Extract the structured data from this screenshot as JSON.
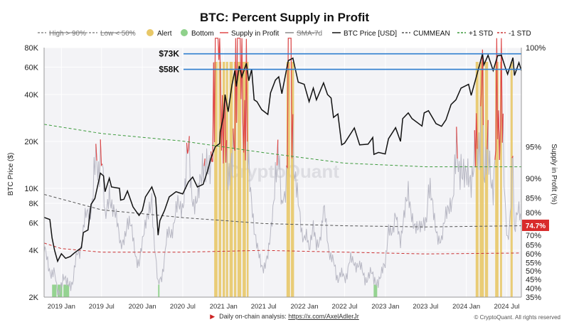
{
  "chart_data": {
    "type": "line",
    "title": "BTC: Percent Supply in Profit",
    "ylabel_left": "BTC Price ($)",
    "ylabel_right": "Supply in Profit (%)",
    "x_tick_labels": [
      "2019 Jan",
      "2019 Jul",
      "2020 Jan",
      "2020 Jul",
      "2021 Jan",
      "2021 Jul",
      "2022 Jan",
      "2022 Jul",
      "2023 Jan",
      "2023 Jul",
      "2024 Jan",
      "2024 Jul"
    ],
    "x_ticks": [
      "2019-01-01",
      "2019-07-01",
      "2020-01-01",
      "2020-07-01",
      "2021-01-01",
      "2021-07-01",
      "2022-01-01",
      "2022-07-01",
      "2023-01-01",
      "2023-07-01",
      "2024-01-01",
      "2024-07-01"
    ],
    "xlim": [
      "2018-10-15",
      "2024-09-05"
    ],
    "left_axis": {
      "scale": "log",
      "ylim": [
        2000,
        80000
      ],
      "tick_labels": [
        "2K",
        "4K",
        "6K",
        "8K",
        "10K",
        "20K",
        "40K",
        "60K",
        "80K"
      ],
      "ticks": [
        2000,
        4000,
        6000,
        8000,
        10000,
        20000,
        40000,
        60000,
        80000
      ]
    },
    "right_axis": {
      "scale": "logit",
      "ylim": [
        35,
        100
      ],
      "tick_labels": [
        "35%",
        "40%",
        "45%",
        "50%",
        "55%",
        "60%",
        "65%",
        "70%",
        "75%",
        "80%",
        "85%",
        "90%",
        "95%",
        "100%"
      ],
      "ticks": [
        35,
        40,
        45,
        50,
        55,
        60,
        65,
        70,
        75,
        80,
        85,
        90,
        95,
        100
      ]
    },
    "legend": {
      "placement": "top",
      "items": [
        {
          "label": "High > 90%",
          "style": "dashed-struck",
          "color": "#8a8a8a"
        },
        {
          "label": "Low < 50%",
          "style": "dashed-struck",
          "color": "#8a8a8a"
        },
        {
          "label": "Alert",
          "style": "dot",
          "color": "#e8c868"
        },
        {
          "label": "Bottom",
          "style": "dot",
          "color": "#8fd18b"
        },
        {
          "label": "Supply in Profit",
          "style": "line",
          "color": "#e04848"
        },
        {
          "label": "SMA-7d",
          "style": "line-struck",
          "color": "#8a8a8a"
        },
        {
          "label": "BTC Price [USD]",
          "style": "line",
          "color": "#111111"
        },
        {
          "label": "CUMMEAN",
          "style": "dashed",
          "color": "#555555"
        },
        {
          "label": "+1 STD",
          "style": "dashed",
          "color": "#3c9a3c"
        },
        {
          "label": "-1 STD",
          "style": "dashed",
          "color": "#cc3333"
        }
      ]
    },
    "annotations": [
      {
        "label": "$73K",
        "price": 73000,
        "color": "#2f7fd0"
      },
      {
        "label": "$58K",
        "price": 58000,
        "color": "#2f7fd0"
      }
    ],
    "current_value_label": "74.7%",
    "current_value": 74.7,
    "watermark": "CryptoQuant",
    "alert_periods": [
      [
        "2020-11-20",
        "2020-12-05"
      ],
      [
        "2020-12-10",
        "2020-12-22"
      ],
      [
        "2020-12-28",
        "2021-01-08"
      ],
      [
        "2021-01-12",
        "2021-01-22"
      ],
      [
        "2021-01-28",
        "2021-02-12"
      ],
      [
        "2021-02-17",
        "2021-02-28"
      ],
      [
        "2021-03-05",
        "2021-03-22"
      ],
      [
        "2021-03-28",
        "2021-04-12"
      ],
      [
        "2021-04-16",
        "2021-04-24"
      ],
      [
        "2021-10-12",
        "2021-10-28"
      ],
      [
        "2021-11-01",
        "2021-11-15"
      ],
      [
        "2024-02-12",
        "2024-02-25"
      ],
      [
        "2024-03-01",
        "2024-03-20"
      ],
      [
        "2024-03-25",
        "2024-04-08"
      ],
      [
        "2024-05-10",
        "2024-05-25"
      ],
      [
        "2024-06-01",
        "2024-06-10"
      ],
      [
        "2024-07-18",
        "2024-07-28"
      ]
    ],
    "bottom_periods": [
      [
        "2018-11-20",
        "2018-12-10"
      ],
      [
        "2018-12-15",
        "2019-01-05"
      ],
      [
        "2019-01-10",
        "2019-02-05"
      ],
      [
        "2020-03-12",
        "2020-03-16"
      ],
      [
        "2022-11-09",
        "2022-11-25"
      ]
    ],
    "series": [
      {
        "name": "BTC Price [USD]",
        "axis": "left",
        "color": "#111111",
        "points": [
          [
            "2018-10-15",
            6500
          ],
          [
            "2018-11-10",
            6300
          ],
          [
            "2018-11-20",
            4800
          ],
          [
            "2018-12-01",
            4000
          ],
          [
            "2018-12-15",
            3400
          ],
          [
            "2019-01-01",
            3800
          ],
          [
            "2019-01-20",
            3550
          ],
          [
            "2019-02-10",
            3650
          ],
          [
            "2019-03-01",
            3850
          ],
          [
            "2019-04-01",
            4150
          ],
          [
            "2019-04-10",
            5200
          ],
          [
            "2019-05-01",
            5400
          ],
          [
            "2019-05-15",
            7900
          ],
          [
            "2019-06-01",
            8600
          ],
          [
            "2019-06-26",
            12500
          ],
          [
            "2019-07-10",
            12000
          ],
          [
            "2019-07-17",
            9500
          ],
          [
            "2019-08-05",
            11600
          ],
          [
            "2019-08-15",
            10200
          ],
          [
            "2019-09-20",
            10000
          ],
          [
            "2019-09-25",
            8400
          ],
          [
            "2019-10-10",
            8500
          ],
          [
            "2019-10-26",
            9600
          ],
          [
            "2019-11-20",
            7600
          ],
          [
            "2019-12-17",
            6700
          ],
          [
            "2020-01-01",
            7200
          ],
          [
            "2020-01-15",
            8800
          ],
          [
            "2020-02-13",
            10200
          ],
          [
            "2020-03-01",
            8700
          ],
          [
            "2020-03-12",
            5000
          ],
          [
            "2020-03-20",
            6200
          ],
          [
            "2020-04-10",
            7200
          ],
          [
            "2020-05-01",
            8800
          ],
          [
            "2020-06-01",
            9500
          ],
          [
            "2020-07-01",
            9200
          ],
          [
            "2020-07-27",
            11000
          ],
          [
            "2020-08-15",
            11800
          ],
          [
            "2020-09-05",
            10200
          ],
          [
            "2020-10-01",
            10600
          ],
          [
            "2020-10-21",
            12900
          ],
          [
            "2020-11-05",
            15600
          ],
          [
            "2020-11-25",
            18500
          ],
          [
            "2020-12-15",
            19400
          ],
          [
            "2020-12-17",
            23000
          ],
          [
            "2021-01-01",
            29000
          ],
          [
            "2021-01-08",
            40000
          ],
          [
            "2021-01-22",
            31000
          ],
          [
            "2021-02-08",
            46000
          ],
          [
            "2021-02-21",
            57000
          ],
          [
            "2021-02-28",
            45000
          ],
          [
            "2021-03-13",
            61000
          ],
          [
            "2021-03-25",
            52000
          ],
          [
            "2021-04-14",
            63500
          ],
          [
            "2021-04-25",
            49000
          ],
          [
            "2021-05-08",
            58000
          ],
          [
            "2021-05-19",
            37000
          ],
          [
            "2021-06-01",
            36000
          ],
          [
            "2021-06-22",
            32000
          ],
          [
            "2021-07-20",
            29800
          ],
          [
            "2021-08-01",
            41000
          ],
          [
            "2021-08-23",
            49500
          ],
          [
            "2021-09-07",
            52000
          ],
          [
            "2021-09-21",
            40500
          ],
          [
            "2021-10-01",
            48000
          ],
          [
            "2021-10-20",
            66000
          ],
          [
            "2021-11-10",
            68500
          ],
          [
            "2021-11-26",
            54000
          ],
          [
            "2021-12-04",
            48000
          ],
          [
            "2021-12-31",
            46500
          ],
          [
            "2022-01-22",
            36000
          ],
          [
            "2022-02-10",
            44000
          ],
          [
            "2022-02-24",
            37000
          ],
          [
            "2022-03-28",
            47500
          ],
          [
            "2022-04-15",
            40000
          ],
          [
            "2022-05-01",
            38000
          ],
          [
            "2022-05-12",
            28500
          ],
          [
            "2022-06-01",
            30000
          ],
          [
            "2022-06-18",
            19000
          ],
          [
            "2022-07-01",
            19500
          ],
          [
            "2022-08-14",
            24400
          ],
          [
            "2022-09-07",
            19000
          ],
          [
            "2022-10-15",
            19200
          ],
          [
            "2022-11-05",
            21200
          ],
          [
            "2022-11-10",
            16500
          ],
          [
            "2022-12-01",
            17000
          ],
          [
            "2022-12-31",
            16600
          ],
          [
            "2023-01-15",
            20800
          ],
          [
            "2023-02-16",
            24500
          ],
          [
            "2023-03-10",
            20000
          ],
          [
            "2023-03-20",
            28000
          ],
          [
            "2023-04-14",
            30500
          ],
          [
            "2023-05-01",
            28000
          ],
          [
            "2023-06-15",
            25100
          ],
          [
            "2023-06-25",
            30500
          ],
          [
            "2023-07-14",
            31500
          ],
          [
            "2023-08-17",
            26000
          ],
          [
            "2023-09-11",
            25000
          ],
          [
            "2023-10-01",
            27500
          ],
          [
            "2023-10-24",
            34500
          ],
          [
            "2023-11-15",
            37000
          ],
          [
            "2023-12-08",
            44000
          ],
          [
            "2024-01-11",
            46500
          ],
          [
            "2024-01-23",
            39500
          ],
          [
            "2024-02-15",
            52000
          ],
          [
            "2024-02-28",
            61000
          ],
          [
            "2024-03-14",
            73000
          ],
          [
            "2024-03-20",
            62000
          ],
          [
            "2024-04-08",
            71500
          ],
          [
            "2024-05-01",
            57000
          ],
          [
            "2024-05-21",
            71000
          ],
          [
            "2024-06-07",
            71500
          ],
          [
            "2024-06-24",
            60000
          ],
          [
            "2024-07-05",
            54000
          ],
          [
            "2024-07-29",
            69000
          ],
          [
            "2024-08-05",
            53000
          ],
          [
            "2024-08-25",
            64000
          ],
          [
            "2024-09-05",
            57000
          ]
        ]
      },
      {
        "name": "SMA-7d",
        "axis": "right",
        "color": "#b8b8c4",
        "points": [
          [
            "2018-10-15",
            60
          ],
          [
            "2018-11-20",
            50
          ],
          [
            "2018-12-15",
            40
          ],
          [
            "2019-01-20",
            43
          ],
          [
            "2019-02-20",
            46
          ],
          [
            "2019-04-10",
            72
          ],
          [
            "2019-05-20",
            86
          ],
          [
            "2019-06-26",
            96
          ],
          [
            "2019-07-17",
            80
          ],
          [
            "2019-08-05",
            90
          ],
          [
            "2019-09-25",
            65
          ],
          [
            "2019-10-26",
            78
          ],
          [
            "2019-12-17",
            55
          ],
          [
            "2020-02-13",
            88
          ],
          [
            "2020-03-12",
            38
          ],
          [
            "2020-04-30",
            72
          ],
          [
            "2020-06-01",
            78
          ],
          [
            "2020-07-27",
            92
          ],
          [
            "2020-09-05",
            82
          ],
          [
            "2020-10-21",
            94
          ],
          [
            "2020-11-25",
            99
          ],
          [
            "2021-01-08",
            99.5
          ],
          [
            "2021-01-22",
            93
          ],
          [
            "2021-02-21",
            99.5
          ],
          [
            "2021-03-13",
            99.5
          ],
          [
            "2021-04-14",
            99.5
          ],
          [
            "2021-05-19",
            70
          ],
          [
            "2021-06-22",
            55
          ],
          [
            "2021-07-20",
            56
          ],
          [
            "2021-08-23",
            87
          ],
          [
            "2021-09-07",
            93
          ],
          [
            "2021-09-21",
            78
          ],
          [
            "2021-10-20",
            99
          ],
          [
            "2021-11-10",
            99
          ],
          [
            "2021-12-04",
            80
          ],
          [
            "2022-01-22",
            62
          ],
          [
            "2022-02-10",
            78
          ],
          [
            "2022-02-24",
            63
          ],
          [
            "2022-03-28",
            80
          ],
          [
            "2022-05-12",
            52
          ],
          [
            "2022-06-18",
            45
          ],
          [
            "2022-08-14",
            58
          ],
          [
            "2022-09-07",
            50
          ],
          [
            "2022-11-10",
            45
          ],
          [
            "2022-12-31",
            50
          ],
          [
            "2023-01-15",
            70
          ],
          [
            "2023-02-16",
            80
          ],
          [
            "2023-03-10",
            67
          ],
          [
            "2023-04-14",
            85
          ],
          [
            "2023-06-15",
            70
          ],
          [
            "2023-07-14",
            86
          ],
          [
            "2023-09-11",
            67
          ],
          [
            "2023-10-24",
            86
          ],
          [
            "2023-12-08",
            95
          ],
          [
            "2024-01-23",
            84
          ],
          [
            "2024-02-15",
            96
          ],
          [
            "2024-03-14",
            99.5
          ],
          [
            "2024-03-20",
            94
          ],
          [
            "2024-04-08",
            99
          ],
          [
            "2024-05-01",
            84
          ],
          [
            "2024-05-21",
            98
          ],
          [
            "2024-06-07",
            99
          ],
          [
            "2024-07-05",
            70
          ],
          [
            "2024-07-29",
            93
          ],
          [
            "2024-08-05",
            70
          ],
          [
            "2024-08-25",
            80
          ],
          [
            "2024-09-05",
            74.7
          ]
        ]
      },
      {
        "name": "CUMMEAN",
        "axis": "right",
        "color": "#555555",
        "points": [
          [
            "2018-10-15",
            86
          ],
          [
            "2019-07-01",
            81
          ],
          [
            "2020-07-01",
            78
          ],
          [
            "2021-07-01",
            75.5
          ],
          [
            "2022-07-01",
            74.5
          ],
          [
            "2023-07-01",
            74
          ],
          [
            "2024-09-05",
            74.5
          ]
        ]
      },
      {
        "name": "+1 STD",
        "axis": "right",
        "color": "#3c9a3c",
        "points": [
          [
            "2018-10-15",
            97
          ],
          [
            "2019-07-01",
            96.3
          ],
          [
            "2020-07-01",
            95.6
          ],
          [
            "2021-07-01",
            94.3
          ],
          [
            "2022-07-01",
            92.8
          ],
          [
            "2023-07-01",
            92.2
          ],
          [
            "2024-09-05",
            92.2
          ]
        ]
      },
      {
        "name": "-1 STD",
        "axis": "right",
        "color": "#cc3333",
        "points": [
          [
            "2018-10-15",
            66
          ],
          [
            "2019-01-01",
            63
          ],
          [
            "2019-07-01",
            61
          ],
          [
            "2020-07-01",
            61
          ],
          [
            "2021-07-01",
            62
          ],
          [
            "2022-07-01",
            61
          ],
          [
            "2023-07-01",
            60
          ],
          [
            "2024-09-05",
            60.5
          ]
        ]
      }
    ]
  },
  "footer": {
    "analysis_label": "Daily on-chain analysis:",
    "analysis_link": "https://x.com/AxelAdlerJr",
    "copyright": "© CryptoQuant. All rights reserved"
  }
}
